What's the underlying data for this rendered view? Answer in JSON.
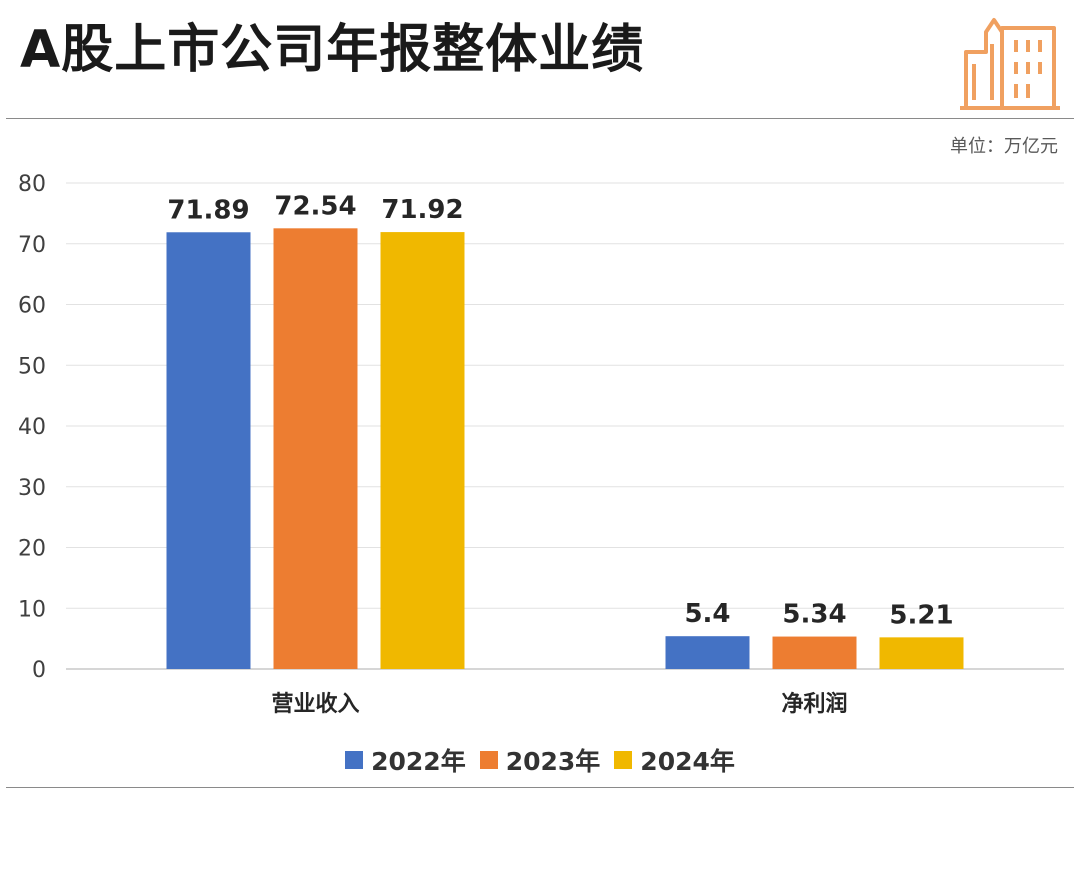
{
  "header": {
    "title": "A股上市公司年报整体业绩",
    "unit": "单位：万亿元",
    "logo_icon": "buildings-icon",
    "logo_color": "#f0a060"
  },
  "chart_data": {
    "type": "bar",
    "title": "A股上市公司年报整体业绩",
    "categories": [
      "营业收入",
      "净利润"
    ],
    "series": [
      {
        "name": "2022年",
        "values": [
          71.89,
          5.4
        ],
        "color": "#4472c4"
      },
      {
        "name": "2023年",
        "values": [
          72.54,
          5.34
        ],
        "color": "#ed7d31"
      },
      {
        "name": "2024年",
        "values": [
          71.92,
          5.21
        ],
        "color": "#f0b800"
      }
    ],
    "data_labels": [
      [
        "71.89",
        "5.4"
      ],
      [
        "72.54",
        "5.34"
      ],
      [
        "71.92",
        "5.21"
      ]
    ],
    "ylim": [
      0,
      80
    ],
    "yticks": [
      0,
      10,
      20,
      30,
      40,
      50,
      60,
      70,
      80
    ],
    "grid": true,
    "legend_position": "bottom",
    "xlabel": "",
    "ylabel": ""
  }
}
